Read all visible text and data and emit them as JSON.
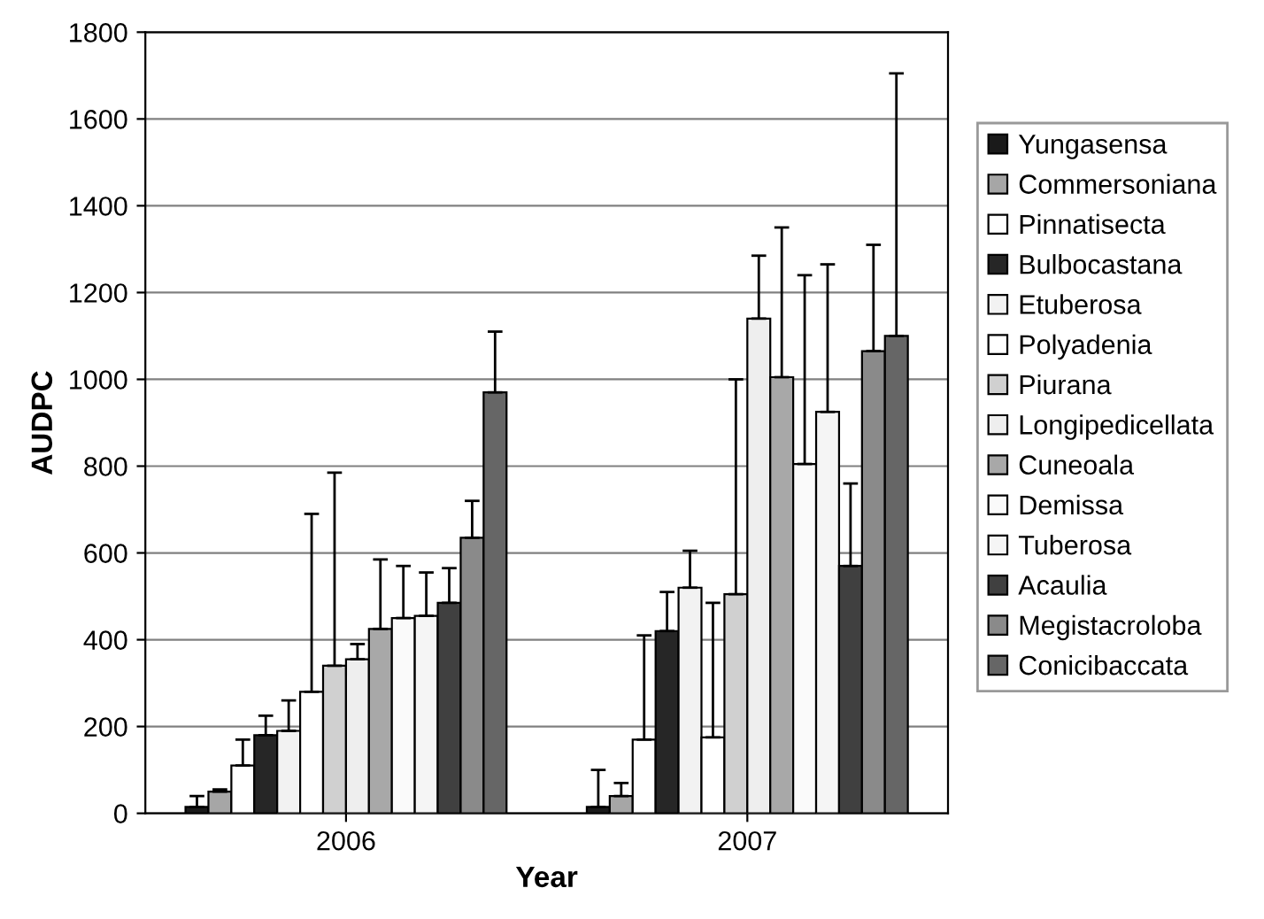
{
  "chart_data": {
    "type": "bar",
    "xlabel": "Year",
    "ylabel": "AUDPC",
    "categories": [
      "2006",
      "2007"
    ],
    "ylim": [
      0,
      1800
    ],
    "yticks": [
      0,
      200,
      400,
      600,
      800,
      1000,
      1200,
      1400,
      1600,
      1800
    ],
    "grid": "y",
    "legend": "right",
    "series": [
      {
        "name": "Yungasensa",
        "color": "#1a1a1a",
        "values": [
          15,
          15
        ],
        "errors": [
          [
            15,
            40
          ],
          [
            15,
            100
          ]
        ]
      },
      {
        "name": "Commersoniana",
        "color": "#a6a6a6",
        "values": [
          50,
          40
        ],
        "errors": [
          [
            50,
            55
          ],
          [
            40,
            70
          ]
        ]
      },
      {
        "name": "Pinnatisecta",
        "color": "#ffffff",
        "values": [
          110,
          170
        ],
        "errors": [
          [
            110,
            170
          ],
          [
            170,
            410
          ]
        ]
      },
      {
        "name": "Bulbocastana",
        "color": "#262626",
        "values": [
          180,
          420
        ],
        "errors": [
          [
            180,
            225
          ],
          [
            420,
            510
          ]
        ]
      },
      {
        "name": "Etuberosa",
        "color": "#f2f2f2",
        "values": [
          190,
          520
        ],
        "errors": [
          [
            190,
            260
          ],
          [
            520,
            605
          ]
        ]
      },
      {
        "name": "Polyadenia",
        "color": "#ffffff",
        "values": [
          280,
          175
        ],
        "errors": [
          [
            280,
            690
          ],
          [
            175,
            485
          ]
        ]
      },
      {
        "name": "Piurana",
        "color": "#d0d0d0",
        "values": [
          340,
          505
        ],
        "errors": [
          [
            340,
            785
          ],
          [
            505,
            1000
          ]
        ]
      },
      {
        "name": "Longipedicellata",
        "color": "#eeeeee",
        "values": [
          355,
          1140
        ],
        "errors": [
          [
            355,
            390
          ],
          [
            1140,
            1285
          ]
        ]
      },
      {
        "name": "Cuneoala",
        "color": "#a8a8a8",
        "values": [
          425,
          1005
        ],
        "errors": [
          [
            425,
            585
          ],
          [
            1005,
            1350
          ]
        ]
      },
      {
        "name": "Demissa",
        "color": "#fafafa",
        "values": [
          450,
          805
        ],
        "errors": [
          [
            450,
            570
          ],
          [
            805,
            1240
          ]
        ]
      },
      {
        "name": "Tuberosa",
        "color": "#f5f5f5",
        "values": [
          455,
          925
        ],
        "errors": [
          [
            455,
            555
          ],
          [
            925,
            1265
          ]
        ]
      },
      {
        "name": "Acaulia",
        "color": "#404040",
        "values": [
          485,
          570
        ],
        "errors": [
          [
            485,
            565
          ],
          [
            570,
            760
          ]
        ]
      },
      {
        "name": "Megistacroloba",
        "color": "#8a8a8a",
        "values": [
          635,
          1065
        ],
        "errors": [
          [
            635,
            720
          ],
          [
            1065,
            1310
          ]
        ]
      },
      {
        "name": "Conicibaccata",
        "color": "#666666",
        "values": [
          970,
          1100
        ],
        "errors": [
          [
            970,
            1110
          ],
          [
            1100,
            1705
          ]
        ]
      }
    ]
  }
}
